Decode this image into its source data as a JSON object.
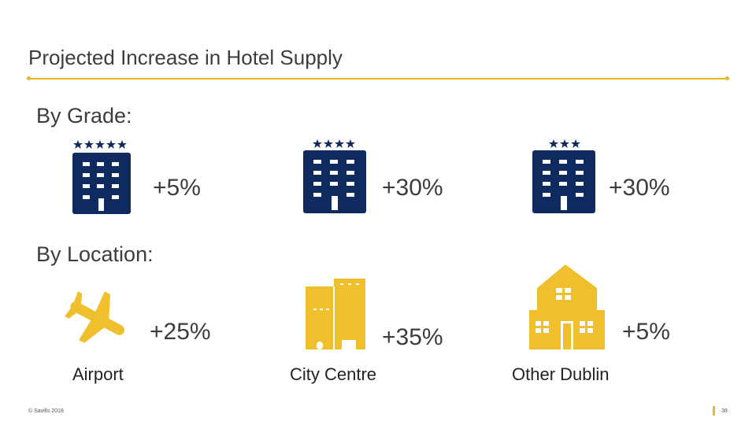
{
  "title": "Projected Increase in Hotel Supply",
  "sections": {
    "grade": "By Grade:",
    "location": "By Location:"
  },
  "grade_items": [
    {
      "stars": 5,
      "value": "+5%"
    },
    {
      "stars": 4,
      "value": "+30%"
    },
    {
      "stars": 3,
      "value": "+30%"
    }
  ],
  "location_items": [
    {
      "icon": "airplane-icon",
      "label": "Airport",
      "value": "+25%"
    },
    {
      "icon": "city-buildings-icon",
      "label": "City Centre",
      "value": "+35%"
    },
    {
      "icon": "house-icon",
      "label": "Other Dublin",
      "value": "+5%"
    }
  ],
  "footer": {
    "copyright": "© Savills 2018",
    "page": "38"
  },
  "colors": {
    "navy": "#0f2a5f",
    "gold": "#f0bf2d",
    "rule": "#e8b92c",
    "text": "#3d3d3d"
  }
}
